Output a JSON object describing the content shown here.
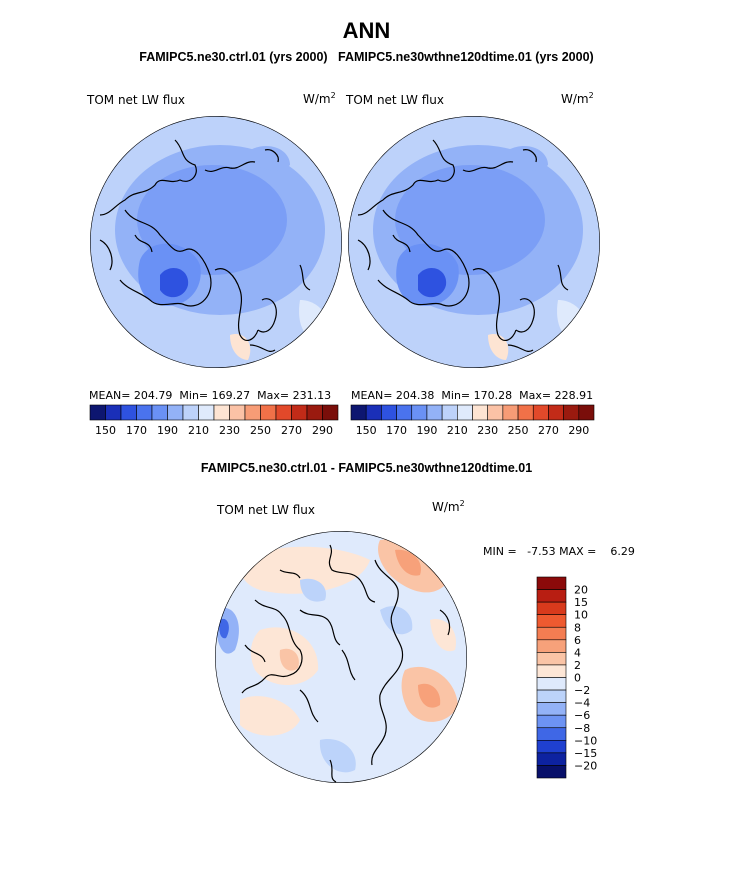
{
  "title": "ANN",
  "subtitle_left": "FAMIPC5.ne30.ctrl.01 (yrs 2000)",
  "subtitle_right": "FAMIPC5.ne30wthne120dtime.01 (yrs 2000)",
  "diff_title": "FAMIPC5.ne30.ctrl.01 - FAMIPC5.ne30wthne120dtime.01",
  "panels": [
    {
      "variable": "TOM net LW flux",
      "units_base": "W/m",
      "units_exp": "2",
      "mean_text": "MEAN= 204.79",
      "min_text": "Min= 169.27",
      "max_text": "Max= 231.13"
    },
    {
      "variable": "TOM net LW flux",
      "units_base": "W/m",
      "units_exp": "2",
      "mean_text": "MEAN= 204.38",
      "min_text": "Min= 170.28",
      "max_text": "Max= 228.91"
    }
  ],
  "diff_panel": {
    "variable": "TOM net LW flux",
    "units_base": "W/m",
    "units_exp": "2",
    "minmax_text": "MIN =   -7.53 MAX =    6.29"
  },
  "chart_data": [
    {
      "type": "heatmap",
      "projection": "north polar stereographic",
      "title": "TOM net LW flux",
      "units": "W/m2",
      "stats": {
        "mean": 204.79,
        "min": 169.27,
        "max": 231.13
      },
      "colorbar_ticks": [
        150,
        170,
        190,
        210,
        230,
        250,
        270,
        290
      ],
      "colorbar_colors": [
        "#0d1670",
        "#1a2fb8",
        "#2e52e0",
        "#4a73ee",
        "#6a91f5",
        "#93b2f7",
        "#bdd2fa",
        "#dfeafc",
        "#fde4d3",
        "#fbc2a6",
        "#f79c76",
        "#f17148",
        "#e2492a",
        "#c22b18",
        "#9a1a0f",
        "#7a0e0a"
      ]
    },
    {
      "type": "heatmap",
      "projection": "north polar stereographic",
      "title": "TOM net LW flux",
      "units": "W/m2",
      "stats": {
        "mean": 204.38,
        "min": 170.28,
        "max": 228.91
      },
      "colorbar_ticks": [
        150,
        170,
        190,
        210,
        230,
        250,
        270,
        290
      ],
      "colorbar_colors": [
        "#0d1670",
        "#1a2fb8",
        "#2e52e0",
        "#4a73ee",
        "#6a91f5",
        "#93b2f7",
        "#bdd2fa",
        "#dfeafc",
        "#fde4d3",
        "#fbc2a6",
        "#f79c76",
        "#f17148",
        "#e2492a",
        "#c22b18",
        "#9a1a0f",
        "#7a0e0a"
      ]
    },
    {
      "type": "heatmap",
      "projection": "north polar stereographic",
      "title": "TOM net LW flux",
      "units": "W/m2",
      "stats": {
        "min": -7.53,
        "max": 6.29
      },
      "colorbar_ticks": [
        20,
        15,
        10,
        8,
        6,
        4,
        2,
        0,
        -2,
        -4,
        -6,
        -8,
        -10,
        -15,
        -20
      ],
      "colorbar_colors": [
        "#8b0a0a",
        "#b81e12",
        "#d83a1c",
        "#ee5a30",
        "#f47d52",
        "#f7a17a",
        "#fac4a6",
        "#fde6d6",
        "#dfeafc",
        "#bcd3fa",
        "#93b2f7",
        "#6d93f3",
        "#3f67e6",
        "#1f40d0",
        "#0d22a0",
        "#08106a"
      ]
    }
  ]
}
